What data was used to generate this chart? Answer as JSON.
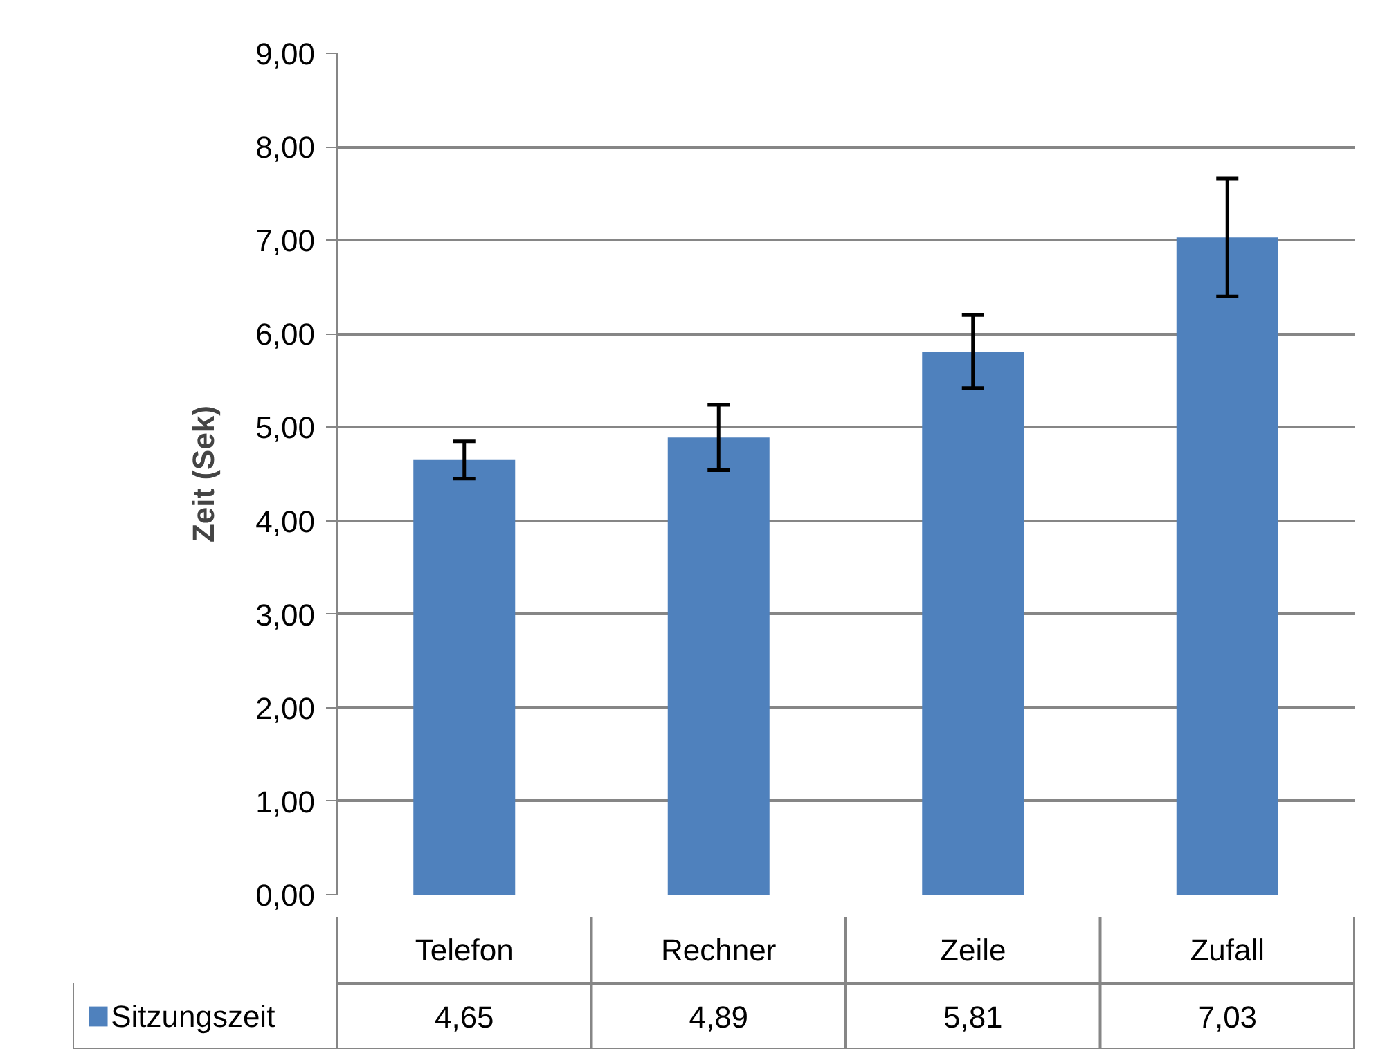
{
  "chart_data": {
    "type": "bar",
    "ylabel": "Zeit (Sek)",
    "categories": [
      "Telefon",
      "Rechner",
      "Zeile",
      "Zufall"
    ],
    "series": [
      {
        "name": "Sitzungszeit",
        "color": "#4f81bd",
        "values": [
          4.65,
          4.89,
          5.81,
          7.03
        ],
        "errors": [
          0.2,
          0.35,
          0.39,
          0.63
        ],
        "value_labels": [
          "4,65",
          "4,89",
          "5,81",
          "7,03"
        ]
      }
    ],
    "ylim": [
      0,
      9
    ],
    "yticks": [
      {
        "value": 0,
        "label": "0,00"
      },
      {
        "value": 1,
        "label": "1,00"
      },
      {
        "value": 2,
        "label": "2,00"
      },
      {
        "value": 3,
        "label": "3,00"
      },
      {
        "value": 4,
        "label": "4,00"
      },
      {
        "value": 5,
        "label": "5,00"
      },
      {
        "value": 6,
        "label": "6,00"
      },
      {
        "value": 7,
        "label": "7,00"
      },
      {
        "value": 8,
        "label": "8,00"
      },
      {
        "value": 9,
        "label": "9,00"
      }
    ],
    "grid": "y",
    "legend": "bottom"
  }
}
